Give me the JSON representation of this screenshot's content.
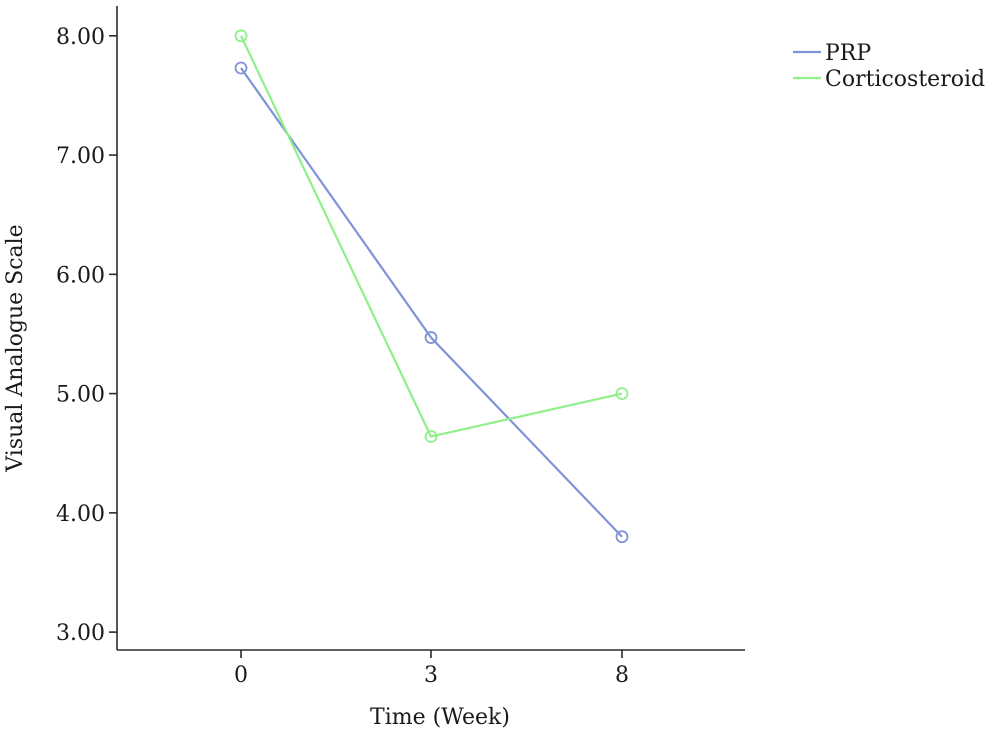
{
  "chart_data": {
    "type": "line",
    "title": "",
    "xlabel": "Time (Week)",
    "ylabel": "Visual Analogue Scale",
    "categories": [
      "0",
      "3",
      "8"
    ],
    "ylim": [
      2.85,
      8.25
    ],
    "yticks": [
      "3.00",
      "4.00",
      "5.00",
      "6.00",
      "7.00",
      "8.00"
    ],
    "legend_position": "top-right",
    "grid": false,
    "series": [
      {
        "name": "PRP",
        "values": [
          7.73,
          5.47,
          3.8
        ],
        "color": "#8093d8",
        "marker": "circle-open"
      },
      {
        "name": "Corticosteroid",
        "values": [
          8.0,
          4.64,
          5.0
        ],
        "color": "#8ff08a",
        "marker": "circle-open"
      }
    ]
  }
}
